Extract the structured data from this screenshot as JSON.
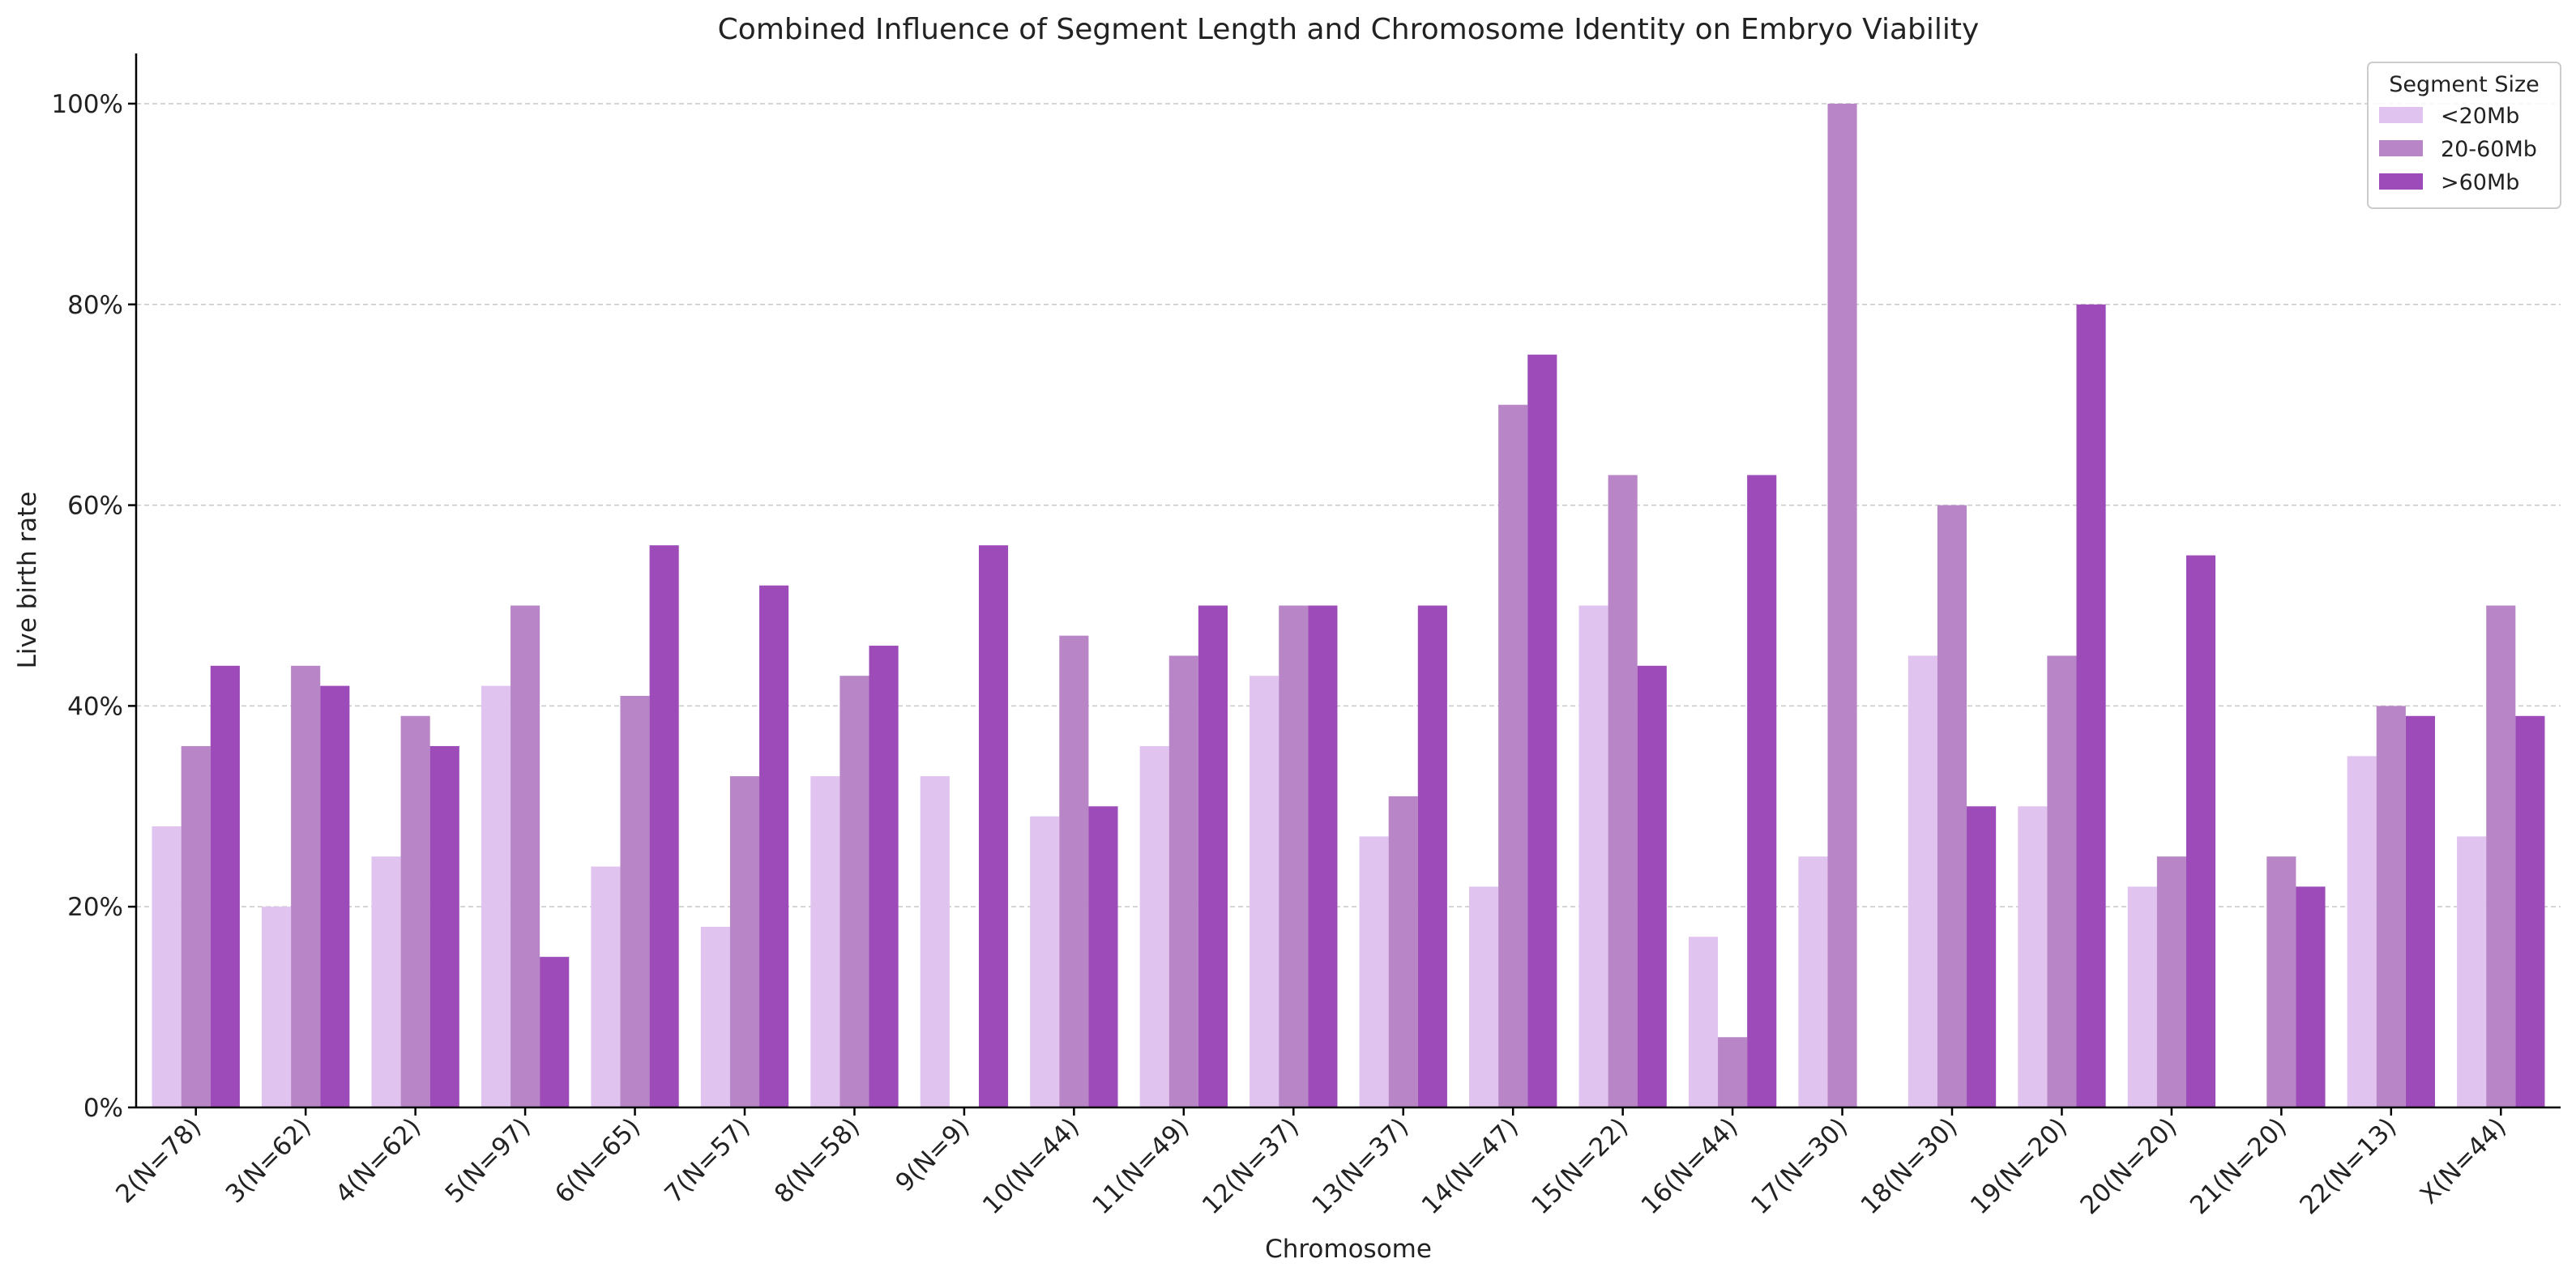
{
  "chart_data": {
    "type": "bar",
    "title": "Combined Influence of Segment Length and Chromosome Identity on Embryo Viability",
    "xlabel": "Chromosome",
    "ylabel": "Live birth rate",
    "ylim": [
      0,
      1.05
    ],
    "yticks": [
      0,
      0.2,
      0.4,
      0.6,
      0.8,
      1.0
    ],
    "ytick_labels": [
      "0%",
      "20%",
      "40%",
      "60%",
      "80%",
      "100%"
    ],
    "grid": "horizontal dashed",
    "legend": {
      "title": "Segment Size",
      "placement": "top-right"
    },
    "categories": [
      "2(N=78)",
      "3(N=62)",
      "4(N=62)",
      "5(N=97)",
      "6(N=65)",
      "7(N=57)",
      "8(N=58)",
      "9(N=9)",
      "10(N=44)",
      "11(N=49)",
      "12(N=37)",
      "13(N=37)",
      "14(N=47)",
      "15(N=22)",
      "16(N=44)",
      "17(N=30)",
      "18(N=30)",
      "19(N=20)",
      "20(N=20)",
      "21(N=20)",
      "22(N=13)",
      "X(N=44)"
    ],
    "series": [
      {
        "name": "<20Mb",
        "color": "#e0c3ef",
        "values": [
          0.28,
          0.2,
          0.25,
          0.42,
          0.24,
          0.18,
          0.33,
          0.33,
          0.29,
          0.36,
          0.43,
          0.27,
          0.22,
          0.5,
          0.17,
          0.25,
          0.45,
          0.3,
          0.22,
          null,
          0.35,
          0.27
        ]
      },
      {
        "name": "20-60Mb",
        "color": "#b886c6",
        "values": [
          0.36,
          0.44,
          0.39,
          0.5,
          0.41,
          0.33,
          0.43,
          null,
          0.47,
          0.45,
          0.5,
          0.31,
          0.7,
          0.63,
          0.07,
          1.0,
          0.6,
          0.45,
          0.25,
          0.25,
          0.4,
          0.5
        ]
      },
      {
        "name": ">60Mb",
        "color": "#9c4bb8",
        "values": [
          0.44,
          0.42,
          0.36,
          0.15,
          0.56,
          0.52,
          0.46,
          0.56,
          0.3,
          0.5,
          0.5,
          0.5,
          0.75,
          0.44,
          0.63,
          null,
          0.3,
          0.8,
          0.55,
          0.22,
          0.39,
          0.39
        ]
      }
    ]
  }
}
